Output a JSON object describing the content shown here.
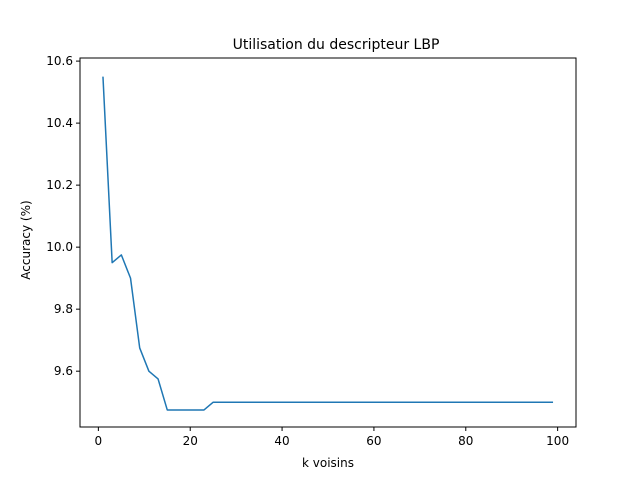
{
  "chart_data": {
    "type": "line",
    "title": "Utilisation du descripteur LBP",
    "xlabel": "k voisins",
    "ylabel": "Accuracy (%)",
    "xlim": [
      -4,
      104
    ],
    "ylim": [
      9.42,
      10.61
    ],
    "xticks": [
      0,
      20,
      40,
      60,
      80,
      100
    ],
    "yticks": [
      9.6,
      9.8,
      10.0,
      10.2,
      10.4,
      10.6
    ],
    "ytick_labels": [
      "9.6",
      "9.8",
      "10.0",
      "10.2",
      "10.4",
      "10.6"
    ],
    "grid": false,
    "color": "#1f77b4",
    "series": [
      {
        "x": [
          1,
          3,
          5,
          7,
          9,
          11,
          13,
          15,
          17,
          19,
          21,
          23,
          25,
          27,
          29,
          31,
          33,
          35,
          37,
          39,
          41,
          43,
          45,
          47,
          49,
          51,
          53,
          55,
          57,
          59,
          61,
          63,
          65,
          67,
          69,
          71,
          73,
          75,
          77,
          79,
          81,
          83,
          85,
          87,
          89,
          91,
          93,
          95,
          97,
          99
        ],
        "y": [
          10.55,
          9.95,
          9.975,
          9.9,
          9.675,
          9.6,
          9.575,
          9.475,
          9.475,
          9.475,
          9.475,
          9.475,
          9.5,
          9.5,
          9.5,
          9.5,
          9.5,
          9.5,
          9.5,
          9.5,
          9.5,
          9.5,
          9.5,
          9.5,
          9.5,
          9.5,
          9.5,
          9.5,
          9.5,
          9.5,
          9.5,
          9.5,
          9.5,
          9.5,
          9.5,
          9.5,
          9.5,
          9.5,
          9.5,
          9.5,
          9.5,
          9.5,
          9.5,
          9.5,
          9.5,
          9.5,
          9.5,
          9.5,
          9.5,
          9.5
        ]
      }
    ]
  }
}
